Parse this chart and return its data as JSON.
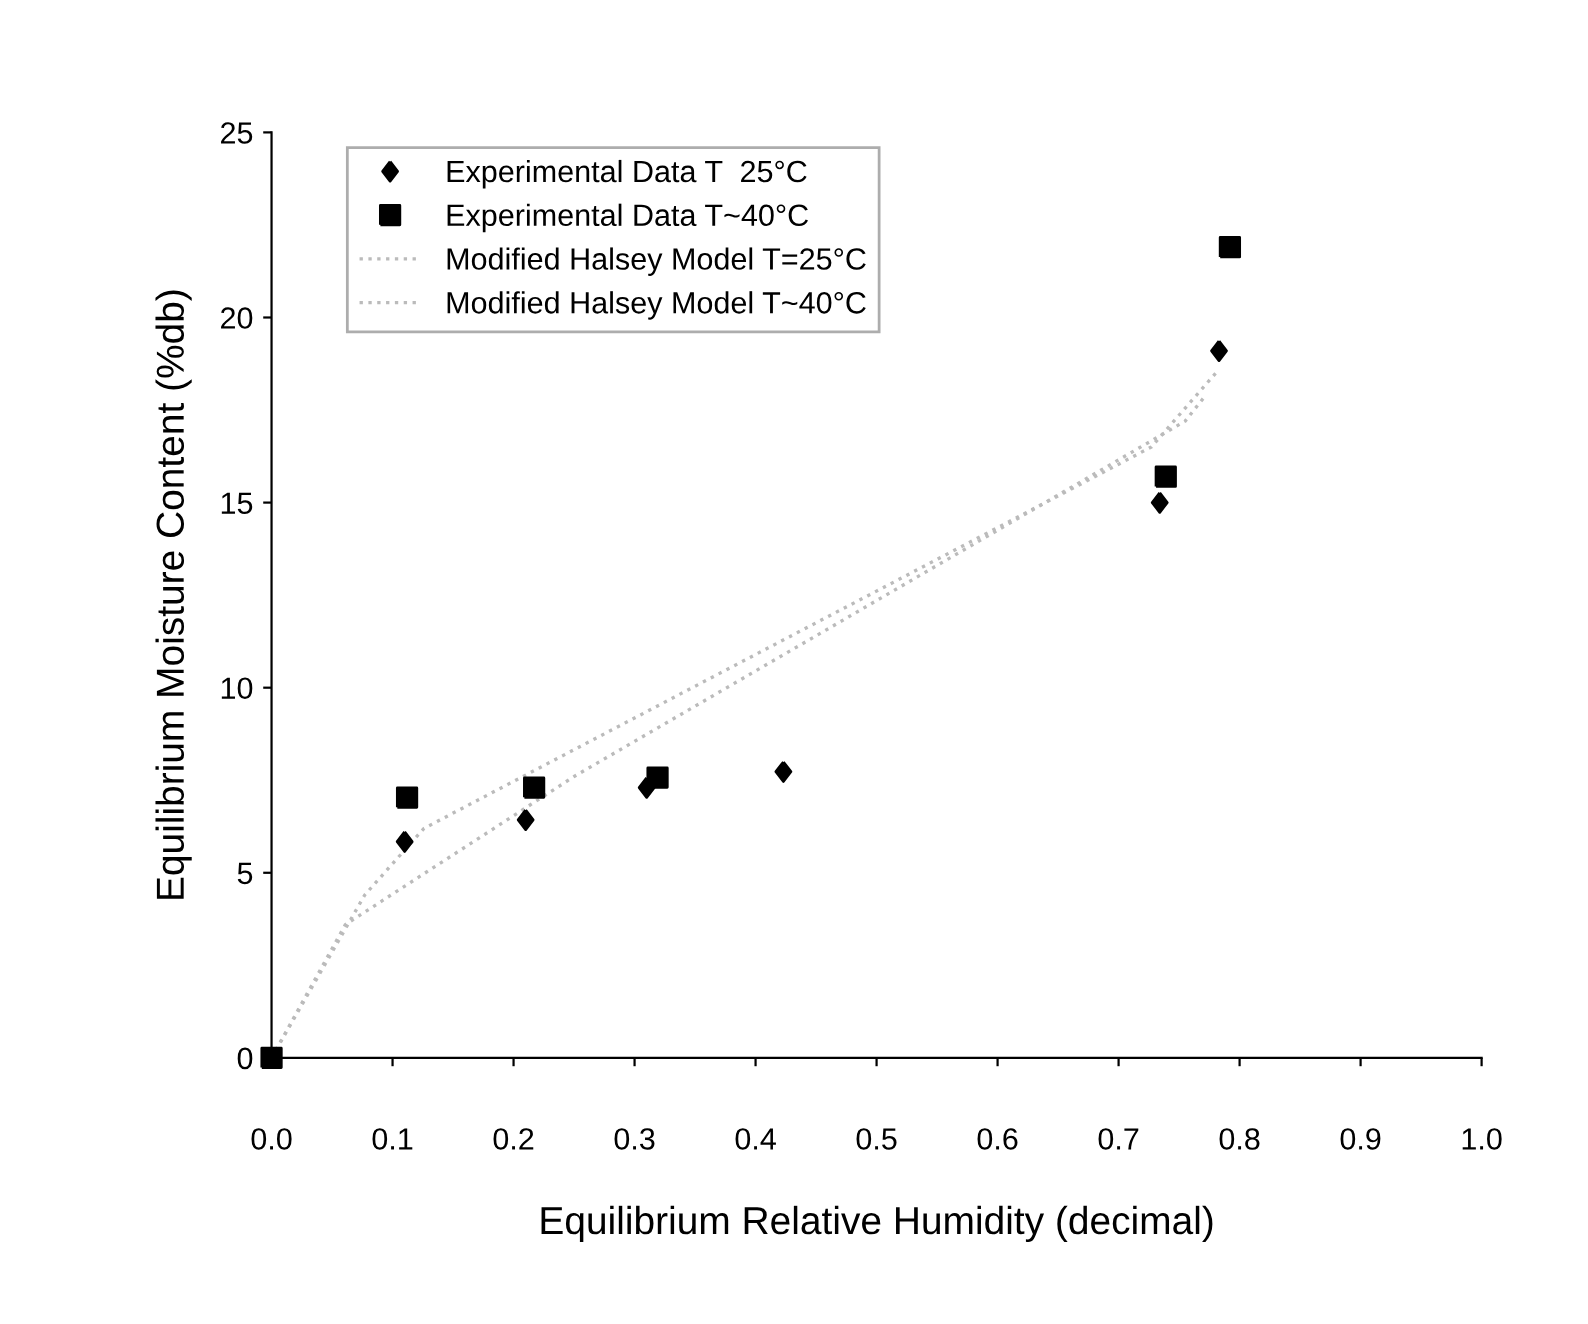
{
  "chart_data": {
    "type": "scatter",
    "xlabel": "Equilibrium Relative Humidity (decimal)",
    "ylabel": "Equilibrium Moisture Content (%db)",
    "xlim": [
      0,
      1
    ],
    "ylim": [
      0,
      25
    ],
    "xticks": [
      {
        "value": 0,
        "label": "0.0"
      },
      0.1,
      0.2,
      0.3,
      0.4,
      0.5,
      0.6,
      0.7,
      0.8,
      0.9,
      {
        "value": 1,
        "label": "1.0"
      }
    ],
    "yticks": [
      0,
      5,
      10,
      15,
      20,
      25
    ],
    "grid": false,
    "legend": "top left",
    "series": [
      {
        "name": "Experimental Data T  25°C",
        "marker": "diamond",
        "color": "#000000",
        "x": [
          0.11,
          0.21,
          0.31,
          0.423,
          0.734,
          0.783
        ],
        "values": [
          5.84,
          6.43,
          7.3,
          7.73,
          15.0,
          19.1
        ]
      },
      {
        "name": "Experimental Data T~40°C",
        "marker": "square",
        "color": "#000000",
        "x": [
          0,
          0.112,
          0.217,
          0.319,
          0.739,
          0.792
        ],
        "values": [
          0,
          7.03,
          7.3,
          7.57,
          15.7,
          21.9
        ]
      },
      {
        "name": "Modified Halsey Model T=25°C",
        "type": "line",
        "line_style": "dotted",
        "marker": "none",
        "color": "#bbbbbb",
        "x": [
          0,
          0.077,
          0.126,
          0.727,
          0.783
        ],
        "values": [
          0,
          4.4,
          6.2,
          16.5,
          18.6
        ]
      },
      {
        "name": "Modified Halsey Model T~40°C",
        "type": "line",
        "line_style": "dotted",
        "marker": "none",
        "color": "#bbbbbb",
        "x": [
          0,
          0.061,
          0.25,
          0.755,
          0.772
        ],
        "values": [
          0,
          3.6,
          7.6,
          17.2,
          17.9
        ]
      }
    ]
  }
}
